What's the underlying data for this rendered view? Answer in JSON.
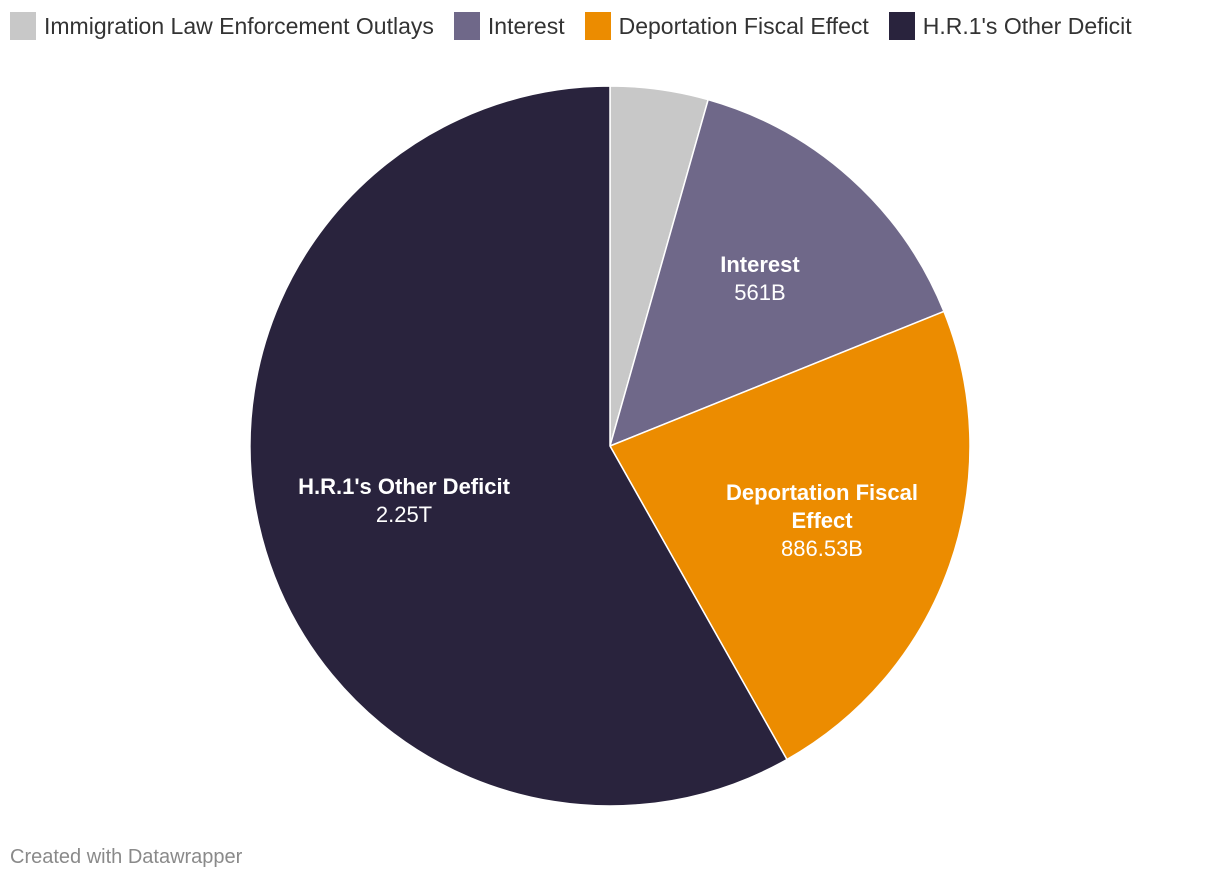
{
  "chart_data": {
    "type": "pie",
    "title": "",
    "slices": [
      {
        "name": "Immigration Law Enforcement Outlays",
        "value": 170,
        "display": "",
        "color": "#c8c8c8"
      },
      {
        "name": "Interest",
        "value": 561,
        "display": "561B",
        "color": "#6f6889"
      },
      {
        "name": "Deportation Fiscal Effect",
        "value": 886.53,
        "display": "886.53B",
        "color": "#ec8c00"
      },
      {
        "name": "H.R.1's Other Deficit",
        "value": 2250,
        "display": "2.25T",
        "color": "#29233d"
      }
    ],
    "legend": {
      "placement": "top-left"
    }
  },
  "footer": {
    "credit": "Created with Datawrapper"
  }
}
